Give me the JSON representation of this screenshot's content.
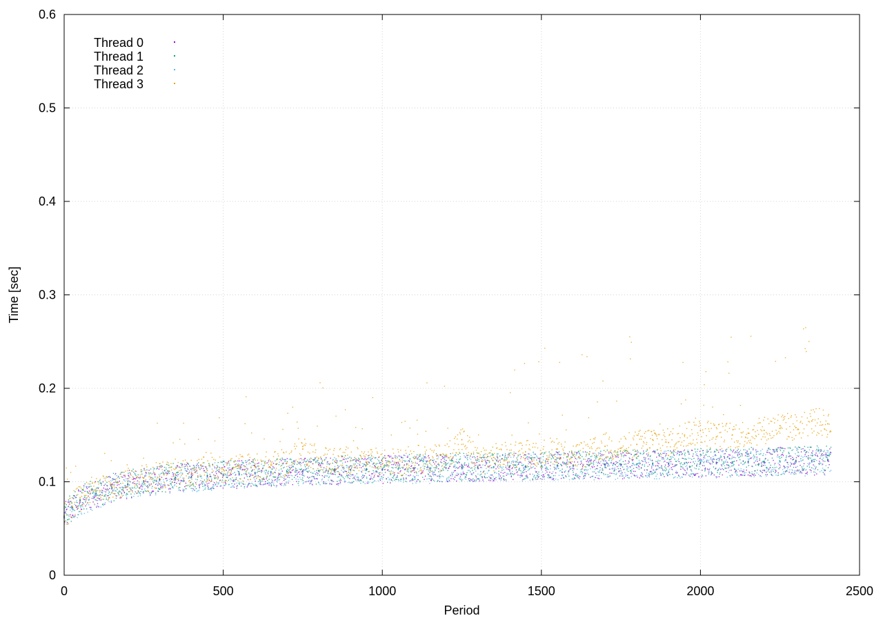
{
  "chart_data": {
    "type": "scatter",
    "title": "",
    "xlabel": "Period",
    "ylabel": "Time [sec]",
    "xlim": [
      0,
      2500
    ],
    "ylim": [
      0,
      0.6
    ],
    "x_ticks": [
      0,
      500,
      1000,
      1500,
      2000,
      2500
    ],
    "y_ticks": [
      0,
      0.1,
      0.2,
      0.3,
      0.4,
      0.5,
      0.6
    ],
    "x_tick_labels": [
      "0",
      "500",
      "1000",
      "1500",
      "2000",
      "2500"
    ],
    "y_tick_labels": [
      "0",
      "0.1",
      "0.2",
      "0.3",
      "0.4",
      "0.5",
      "0.6"
    ],
    "grid": true,
    "legend_position": "top-left",
    "series": [
      {
        "name": "Thread 0",
        "color": "#9400d3",
        "x": [
          0,
          25,
          50,
          100,
          150,
          200,
          250,
          300,
          350,
          400,
          450,
          500,
          550,
          600,
          650,
          700,
          750,
          800,
          850,
          900,
          950,
          1000,
          1050,
          1100,
          1150,
          1200,
          1250,
          1300,
          1350,
          1400,
          1450,
          1500,
          1550,
          1600,
          1650,
          1700,
          1750,
          1800,
          1850,
          1900,
          1950,
          2000,
          2050,
          2100,
          2150,
          2200,
          2250,
          2300,
          2350,
          2400
        ],
        "values": [
          0.062,
          0.072,
          0.08,
          0.087,
          0.093,
          0.097,
          0.1,
          0.102,
          0.104,
          0.105,
          0.106,
          0.107,
          0.108,
          0.109,
          0.11,
          0.111,
          0.111,
          0.112,
          0.112,
          0.113,
          0.113,
          0.113,
          0.114,
          0.114,
          0.114,
          0.115,
          0.115,
          0.115,
          0.116,
          0.116,
          0.116,
          0.117,
          0.117,
          0.117,
          0.118,
          0.118,
          0.118,
          0.119,
          0.119,
          0.119,
          0.12,
          0.12,
          0.12,
          0.121,
          0.121,
          0.121,
          0.122,
          0.122,
          0.122,
          0.123
        ]
      },
      {
        "name": "Thread 1",
        "color": "#009e73",
        "x": [
          0,
          25,
          50,
          100,
          150,
          200,
          250,
          300,
          350,
          400,
          450,
          500,
          550,
          600,
          650,
          700,
          750,
          800,
          850,
          900,
          950,
          1000,
          1050,
          1100,
          1150,
          1200,
          1250,
          1300,
          1350,
          1400,
          1450,
          1500,
          1550,
          1600,
          1650,
          1700,
          1750,
          1800,
          1850,
          1900,
          1950,
          2000,
          2050,
          2100,
          2150,
          2200,
          2250,
          2300,
          2350,
          2400
        ],
        "values": [
          0.063,
          0.073,
          0.081,
          0.088,
          0.094,
          0.098,
          0.101,
          0.103,
          0.105,
          0.106,
          0.107,
          0.108,
          0.109,
          0.11,
          0.111,
          0.111,
          0.112,
          0.112,
          0.113,
          0.113,
          0.114,
          0.114,
          0.114,
          0.115,
          0.115,
          0.115,
          0.116,
          0.116,
          0.116,
          0.117,
          0.117,
          0.117,
          0.118,
          0.118,
          0.118,
          0.119,
          0.119,
          0.119,
          0.12,
          0.12,
          0.12,
          0.121,
          0.121,
          0.121,
          0.122,
          0.122,
          0.122,
          0.123,
          0.123,
          0.124
        ]
      },
      {
        "name": "Thread 2",
        "color": "#56b4e9",
        "x": [
          0,
          25,
          50,
          100,
          150,
          200,
          250,
          300,
          350,
          400,
          450,
          500,
          550,
          600,
          650,
          700,
          750,
          800,
          850,
          900,
          950,
          1000,
          1050,
          1100,
          1150,
          1200,
          1250,
          1300,
          1350,
          1400,
          1450,
          1500,
          1550,
          1600,
          1650,
          1700,
          1750,
          1800,
          1850,
          1900,
          1950,
          2000,
          2050,
          2100,
          2150,
          2200,
          2250,
          2300,
          2350,
          2400
        ],
        "values": [
          0.061,
          0.071,
          0.079,
          0.086,
          0.092,
          0.096,
          0.099,
          0.101,
          0.103,
          0.104,
          0.105,
          0.106,
          0.107,
          0.108,
          0.109,
          0.11,
          0.11,
          0.111,
          0.111,
          0.112,
          0.112,
          0.112,
          0.113,
          0.113,
          0.113,
          0.114,
          0.114,
          0.114,
          0.115,
          0.115,
          0.115,
          0.116,
          0.116,
          0.116,
          0.117,
          0.117,
          0.117,
          0.118,
          0.118,
          0.118,
          0.119,
          0.119,
          0.119,
          0.12,
          0.12,
          0.12,
          0.121,
          0.121,
          0.121,
          0.122
        ]
      },
      {
        "name": "Thread 3",
        "color": "#e69f00",
        "x": [
          0,
          25,
          50,
          100,
          150,
          200,
          250,
          300,
          350,
          400,
          450,
          500,
          550,
          600,
          650,
          700,
          750,
          800,
          850,
          900,
          950,
          1000,
          1050,
          1100,
          1150,
          1200,
          1250,
          1300,
          1350,
          1400,
          1450,
          1500,
          1550,
          1600,
          1650,
          1700,
          1750,
          1800,
          1850,
          1900,
          1950,
          2000,
          2050,
          2100,
          2150,
          2200,
          2250,
          2300,
          2350,
          2400
        ],
        "values": [
          0.064,
          0.074,
          0.083,
          0.09,
          0.096,
          0.1,
          0.104,
          0.106,
          0.108,
          0.11,
          0.112,
          0.113,
          0.115,
          0.116,
          0.118,
          0.12,
          0.135,
          0.125,
          0.122,
          0.123,
          0.121,
          0.122,
          0.121,
          0.125,
          0.123,
          0.128,
          0.145,
          0.124,
          0.126,
          0.128,
          0.132,
          0.13,
          0.135,
          0.128,
          0.13,
          0.138,
          0.136,
          0.14,
          0.145,
          0.142,
          0.15,
          0.155,
          0.148,
          0.15,
          0.152,
          0.155,
          0.16,
          0.158,
          0.165,
          0.162
        ]
      }
    ],
    "style": {
      "text_color": "#000000",
      "axis_color": "#000000",
      "grid_color": "#d3d3d3",
      "background": "#ffffff"
    }
  }
}
